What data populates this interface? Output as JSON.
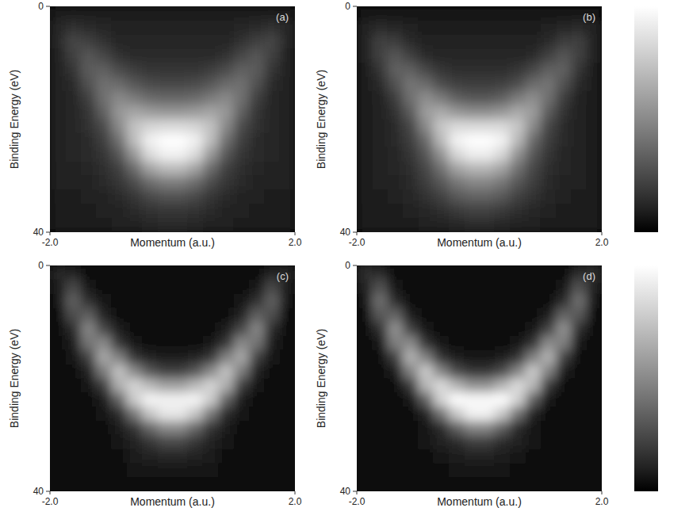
{
  "chart_data": [
    {
      "type": "heatmap",
      "title": "(a)",
      "xlabel": "Momentum (a.u.)",
      "ylabel": "Binding Energy (eV)",
      "xlim": [
        -2,
        2
      ],
      "ylim": [
        0,
        40
      ],
      "xticks": [
        {
          "value": -2,
          "label": "-2.0"
        },
        {
          "value": 2,
          "label": "2.0"
        }
      ],
      "yticks": [
        0,
        40
      ],
      "x_bins": [
        -2,
        -1.75,
        -1.5,
        -1.25,
        -1,
        -0.75,
        -0.5,
        -0.25,
        0,
        0.25,
        0.5,
        0.75,
        1,
        1.25,
        1.5,
        1.75,
        2
      ],
      "y_bins": [
        0,
        2.5,
        5,
        7.5,
        10,
        12.5,
        15,
        17.5,
        20,
        22.5,
        25,
        27.5,
        30,
        32.5,
        35,
        37.5,
        40
      ],
      "color_range": [
        0,
        100
      ],
      "cells": [
        [
          8,
          8,
          8,
          8,
          8,
          8,
          8,
          8,
          8,
          8,
          8,
          8,
          8,
          8,
          8,
          8
        ],
        [
          12,
          16,
          14,
          12,
          10,
          10,
          10,
          10,
          10,
          10,
          10,
          10,
          12,
          14,
          16,
          12
        ],
        [
          12,
          24,
          22,
          16,
          12,
          12,
          12,
          12,
          12,
          12,
          12,
          12,
          16,
          22,
          24,
          12
        ],
        [
          10,
          22,
          30,
          24,
          16,
          14,
          14,
          14,
          14,
          14,
          14,
          16,
          24,
          30,
          22,
          10
        ],
        [
          10,
          18,
          32,
          34,
          26,
          20,
          18,
          18,
          18,
          18,
          20,
          26,
          34,
          32,
          18,
          10
        ],
        [
          10,
          14,
          28,
          40,
          38,
          30,
          26,
          24,
          24,
          26,
          30,
          38,
          40,
          28,
          14,
          10
        ],
        [
          10,
          12,
          22,
          40,
          50,
          44,
          38,
          36,
          36,
          38,
          44,
          50,
          40,
          22,
          12,
          10
        ],
        [
          10,
          12,
          18,
          34,
          56,
          62,
          58,
          56,
          56,
          58,
          62,
          56,
          34,
          18,
          12,
          10
        ],
        [
          10,
          12,
          16,
          26,
          50,
          74,
          82,
          84,
          84,
          82,
          74,
          50,
          26,
          16,
          12,
          10
        ],
        [
          10,
          12,
          14,
          22,
          40,
          72,
          94,
          100,
          100,
          94,
          72,
          40,
          22,
          14,
          12,
          10
        ],
        [
          10,
          12,
          14,
          18,
          30,
          56,
          84,
          94,
          94,
          84,
          56,
          30,
          18,
          14,
          12,
          10
        ],
        [
          10,
          11,
          12,
          15,
          22,
          38,
          60,
          70,
          70,
          60,
          38,
          22,
          15,
          12,
          11,
          10
        ],
        [
          10,
          10,
          11,
          13,
          17,
          26,
          38,
          44,
          44,
          38,
          26,
          17,
          13,
          11,
          10,
          10
        ],
        [
          9,
          9,
          10,
          11,
          13,
          18,
          24,
          28,
          28,
          24,
          18,
          13,
          11,
          10,
          9,
          9
        ],
        [
          8,
          8,
          9,
          10,
          11,
          13,
          16,
          18,
          18,
          16,
          13,
          11,
          10,
          9,
          8,
          8
        ],
        [
          8,
          8,
          8,
          9,
          10,
          11,
          12,
          13,
          13,
          12,
          11,
          10,
          9,
          8,
          8,
          8
        ]
      ]
    },
    {
      "type": "heatmap",
      "title": "(b)",
      "xlabel": "Momentum (a.u.)",
      "ylabel": "Binding Energy (eV)",
      "xlim": [
        -2,
        2
      ],
      "ylim": [
        0,
        40
      ],
      "xticks": [
        {
          "value": -2,
          "label": "-2.0"
        },
        {
          "value": 2,
          "label": "2.0"
        }
      ],
      "yticks": [
        0,
        40
      ],
      "x_bins": [
        -2,
        -1.75,
        -1.5,
        -1.25,
        -1,
        -0.75,
        -0.5,
        -0.25,
        0,
        0.25,
        0.5,
        0.75,
        1,
        1.25,
        1.5,
        1.75,
        2
      ],
      "y_bins": [
        0,
        2.5,
        5,
        7.5,
        10,
        12.5,
        15,
        17.5,
        20,
        22.5,
        25,
        27.5,
        30,
        32.5,
        35,
        37.5,
        40
      ],
      "color_range": [
        0,
        100
      ],
      "cells": [
        [
          7,
          7,
          7,
          7,
          7,
          7,
          7,
          7,
          7,
          7,
          7,
          7,
          7,
          7,
          7,
          7
        ],
        [
          10,
          14,
          12,
          10,
          9,
          8,
          8,
          8,
          8,
          8,
          8,
          9,
          10,
          12,
          14,
          10
        ],
        [
          11,
          22,
          20,
          14,
          10,
          10,
          10,
          10,
          10,
          10,
          10,
          10,
          14,
          20,
          22,
          11
        ],
        [
          10,
          22,
          30,
          22,
          14,
          12,
          12,
          12,
          12,
          12,
          12,
          14,
          22,
          30,
          22,
          10
        ],
        [
          9,
          17,
          34,
          34,
          24,
          17,
          15,
          15,
          15,
          15,
          17,
          24,
          34,
          34,
          17,
          9
        ],
        [
          9,
          13,
          28,
          42,
          38,
          27,
          22,
          20,
          20,
          22,
          27,
          38,
          42,
          28,
          13,
          9
        ],
        [
          9,
          11,
          20,
          40,
          52,
          44,
          34,
          30,
          30,
          34,
          44,
          52,
          40,
          20,
          11,
          9
        ],
        [
          9,
          10,
          16,
          32,
          58,
          64,
          56,
          52,
          52,
          56,
          64,
          58,
          32,
          16,
          10,
          9
        ],
        [
          9,
          10,
          14,
          24,
          50,
          76,
          84,
          84,
          84,
          84,
          76,
          50,
          24,
          14,
          10,
          9
        ],
        [
          9,
          10,
          13,
          20,
          38,
          70,
          95,
          100,
          100,
          95,
          70,
          38,
          20,
          13,
          10,
          9
        ],
        [
          9,
          10,
          12,
          17,
          30,
          54,
          82,
          92,
          92,
          82,
          54,
          30,
          17,
          12,
          10,
          9
        ],
        [
          9,
          10,
          12,
          15,
          24,
          40,
          60,
          68,
          68,
          60,
          40,
          24,
          15,
          12,
          10,
          9
        ],
        [
          9,
          10,
          11,
          14,
          20,
          30,
          42,
          48,
          48,
          42,
          30,
          20,
          14,
          11,
          10,
          9
        ],
        [
          9,
          9,
          10,
          12,
          16,
          22,
          30,
          34,
          34,
          30,
          22,
          16,
          12,
          10,
          9,
          9
        ],
        [
          8,
          8,
          9,
          10,
          12,
          15,
          19,
          22,
          22,
          19,
          15,
          12,
          10,
          9,
          8,
          8
        ],
        [
          8,
          8,
          8,
          9,
          10,
          11,
          12,
          13,
          13,
          12,
          11,
          10,
          9,
          8,
          8,
          8
        ]
      ]
    },
    {
      "type": "heatmap",
      "title": "(c)",
      "xlabel": "Momentum (a.u.)",
      "ylabel": "Binding Energy (eV)",
      "xlim": [
        -2,
        2
      ],
      "ylim": [
        0,
        40
      ],
      "xticks": [
        {
          "value": -2,
          "label": "-2.0"
        },
        {
          "value": 2,
          "label": "2.0"
        }
      ],
      "yticks": [
        0,
        40
      ],
      "x_bins": [
        -2,
        -1.75,
        -1.5,
        -1.25,
        -1,
        -0.75,
        -0.5,
        -0.25,
        0,
        0.25,
        0.5,
        0.75,
        1,
        1.25,
        1.5,
        1.75,
        2
      ],
      "y_bins": [
        0,
        2.5,
        5,
        7.5,
        10,
        12.5,
        15,
        17.5,
        20,
        22.5,
        25,
        27.5,
        30,
        32.5,
        35,
        37.5,
        40
      ],
      "color_range": [
        0,
        100
      ],
      "cells": [
        [
          12,
          11,
          5,
          5,
          5,
          5,
          5,
          5,
          5,
          5,
          5,
          5,
          5,
          5,
          11,
          12
        ],
        [
          9,
          24,
          7,
          5,
          5,
          5,
          5,
          5,
          5,
          5,
          5,
          5,
          5,
          7,
          24,
          9
        ],
        [
          7,
          34,
          15,
          6,
          5,
          5,
          5,
          5,
          5,
          5,
          5,
          5,
          6,
          15,
          34,
          7
        ],
        [
          5,
          27,
          33,
          10,
          5,
          5,
          5,
          5,
          5,
          5,
          5,
          5,
          10,
          33,
          27,
          5
        ],
        [
          5,
          14,
          49,
          24,
          8,
          5,
          5,
          5,
          5,
          5,
          5,
          8,
          24,
          49,
          14,
          5
        ],
        [
          5,
          8,
          42,
          50,
          18,
          7,
          5,
          5,
          5,
          5,
          7,
          18,
          50,
          42,
          8,
          5
        ],
        [
          5,
          6,
          22,
          63,
          46,
          18,
          10,
          8,
          8,
          10,
          18,
          46,
          63,
          22,
          6,
          5
        ],
        [
          5,
          5,
          10,
          45,
          74,
          50,
          30,
          22,
          22,
          30,
          50,
          74,
          45,
          10,
          5,
          5
        ],
        [
          5,
          5,
          6,
          20,
          66,
          82,
          70,
          60,
          60,
          70,
          82,
          66,
          20,
          6,
          5,
          5
        ],
        [
          5,
          5,
          5,
          8,
          35,
          78,
          96,
          95,
          95,
          96,
          78,
          35,
          8,
          5,
          5,
          5
        ],
        [
          5,
          5,
          5,
          6,
          14,
          43,
          75,
          90,
          90,
          75,
          43,
          14,
          6,
          5,
          5,
          5
        ],
        [
          5,
          5,
          5,
          5,
          8,
          17,
          36,
          50,
          50,
          36,
          17,
          8,
          5,
          5,
          5,
          5
        ],
        [
          5,
          5,
          5,
          5,
          6,
          11,
          17,
          24,
          24,
          17,
          11,
          6,
          5,
          5,
          5,
          5
        ],
        [
          5,
          5,
          5,
          5,
          5,
          8,
          10,
          12,
          12,
          10,
          8,
          5,
          5,
          5,
          5,
          5
        ],
        [
          5,
          5,
          5,
          5,
          5,
          6,
          7,
          7,
          7,
          7,
          6,
          5,
          5,
          5,
          5,
          5
        ],
        [
          5,
          5,
          5,
          5,
          5,
          5,
          5,
          5,
          5,
          5,
          5,
          5,
          5,
          5,
          5,
          5
        ]
      ]
    },
    {
      "type": "heatmap",
      "title": "(d)",
      "xlabel": "Momentum (a.u.)",
      "ylabel": "Binding Energy (eV)",
      "xlim": [
        -2,
        2
      ],
      "ylim": [
        0,
        40
      ],
      "xticks": [
        {
          "value": -2,
          "label": "-2.0"
        },
        {
          "value": 2,
          "label": "2.0"
        }
      ],
      "yticks": [
        0,
        40
      ],
      "x_bins": [
        -2,
        -1.75,
        -1.5,
        -1.25,
        -1,
        -0.75,
        -0.5,
        -0.25,
        0,
        0.25,
        0.5,
        0.75,
        1,
        1.25,
        1.5,
        1.75,
        2
      ],
      "y_bins": [
        0,
        2.5,
        5,
        7.5,
        10,
        12.5,
        15,
        17.5,
        20,
        22.5,
        25,
        27.5,
        30,
        32.5,
        35,
        37.5,
        40
      ],
      "color_range": [
        0,
        100
      ],
      "cells": [
        [
          15,
          13,
          5,
          5,
          5,
          5,
          5,
          5,
          5,
          5,
          5,
          5,
          5,
          5,
          13,
          15
        ],
        [
          10,
          28,
          6,
          5,
          5,
          5,
          5,
          5,
          5,
          5,
          5,
          5,
          5,
          6,
          28,
          10
        ],
        [
          7,
          40,
          14,
          5,
          5,
          5,
          5,
          5,
          5,
          5,
          5,
          5,
          5,
          14,
          40,
          7
        ],
        [
          5,
          31,
          35,
          8,
          5,
          5,
          5,
          5,
          5,
          5,
          5,
          5,
          8,
          35,
          31,
          5
        ],
        [
          5,
          15,
          54,
          22,
          7,
          5,
          5,
          5,
          5,
          5,
          5,
          7,
          22,
          54,
          15,
          5
        ],
        [
          5,
          7,
          46,
          51,
          16,
          6,
          5,
          5,
          5,
          5,
          6,
          16,
          51,
          46,
          7,
          5
        ],
        [
          5,
          5,
          22,
          67,
          46,
          16,
          8,
          7,
          7,
          8,
          16,
          46,
          67,
          22,
          5,
          5
        ],
        [
          5,
          5,
          9,
          47,
          77,
          48,
          26,
          18,
          18,
          26,
          48,
          77,
          47,
          9,
          5,
          5
        ],
        [
          5,
          5,
          5,
          19,
          69,
          85,
          68,
          54,
          54,
          68,
          85,
          69,
          19,
          5,
          5,
          5
        ],
        [
          5,
          5,
          5,
          7,
          34,
          81,
          100,
          98,
          98,
          100,
          81,
          34,
          7,
          5,
          5,
          5
        ],
        [
          5,
          5,
          5,
          5,
          11,
          41,
          76,
          95,
          95,
          76,
          41,
          11,
          5,
          5,
          5,
          5
        ],
        [
          5,
          5,
          5,
          5,
          7,
          14,
          33,
          48,
          48,
          33,
          14,
          7,
          5,
          5,
          5,
          5
        ],
        [
          5,
          5,
          5,
          5,
          6,
          10,
          14,
          20,
          20,
          14,
          10,
          6,
          5,
          5,
          5,
          5
        ],
        [
          5,
          5,
          5,
          5,
          5,
          7,
          8,
          10,
          10,
          8,
          7,
          5,
          5,
          5,
          5,
          5
        ],
        [
          5,
          5,
          5,
          5,
          5,
          5,
          6,
          6,
          6,
          6,
          5,
          5,
          5,
          5,
          5,
          5
        ],
        [
          5,
          5,
          5,
          5,
          5,
          5,
          5,
          5,
          5,
          5,
          5,
          5,
          5,
          5,
          5,
          5
        ]
      ]
    }
  ]
}
